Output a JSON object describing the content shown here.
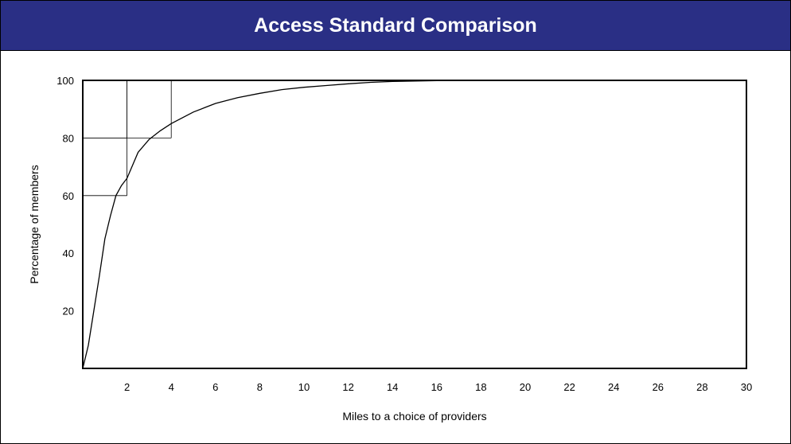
{
  "header": {
    "title": "Access Standard Comparison",
    "background": "#2a2f85"
  },
  "chart_data": {
    "type": "line",
    "title": "Access Standard Comparison",
    "xlabel": "Miles to a choice of providers",
    "ylabel": "Percentage of members",
    "xlim": [
      0,
      30
    ],
    "ylim": [
      0,
      100
    ],
    "xticks": [
      2,
      4,
      6,
      8,
      10,
      12,
      14,
      16,
      18,
      20,
      22,
      24,
      26,
      28,
      30
    ],
    "yticks": [
      20,
      40,
      60,
      80,
      100
    ],
    "grid_lines": [
      {
        "x": 2,
        "y": 60
      },
      {
        "x": 2,
        "y": 80
      },
      {
        "x": 4,
        "y": 80
      },
      {
        "x": 6,
        "y": 100
      },
      {
        "x": 8,
        "y": 100
      },
      {
        "x": 10,
        "y": 100
      }
    ],
    "series": [
      {
        "color": "#000000",
        "x": [
          0,
          0.25,
          0.5,
          0.75,
          1.0,
          1.25,
          1.5,
          1.75,
          2.0,
          2.5,
          3.0,
          3.5,
          4.0,
          4.5,
          5.0,
          5.5,
          6.0,
          7.0,
          8.0,
          9.0,
          10.0,
          11.0,
          12.0,
          13.0,
          14.0,
          16.0,
          18.0,
          22.0,
          26.0,
          30.0
        ],
        "y": [
          0,
          8,
          20,
          32,
          45,
          53,
          60,
          63.5,
          66,
          75,
          79.5,
          82.5,
          85,
          87,
          89,
          90.5,
          92,
          94,
          95.5,
          96.8,
          97.6,
          98.2,
          98.8,
          99.3,
          99.6,
          99.9,
          100,
          100,
          100,
          100
        ]
      }
    ]
  }
}
